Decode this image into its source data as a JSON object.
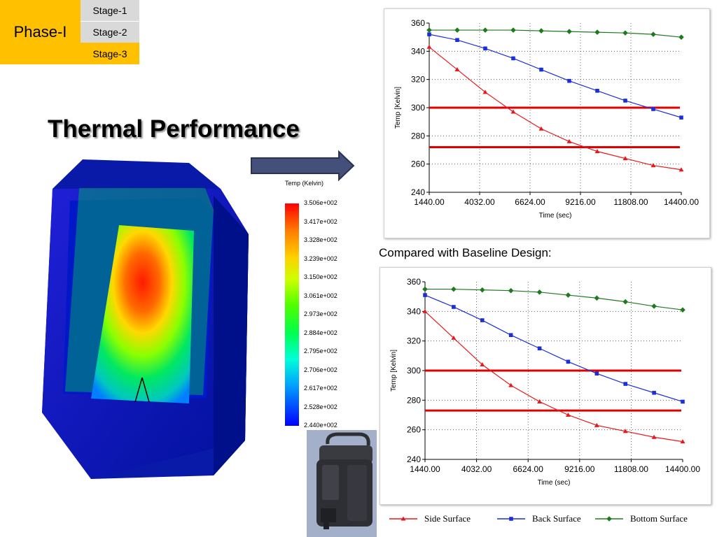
{
  "phase": {
    "label": "Phase-I"
  },
  "stages": [
    "Stage-1",
    "Stage-2",
    "Stage-3"
  ],
  "title": "Thermal Performance",
  "contour": {
    "legend_title": "Temp (Kelvin)",
    "ticks": [
      "3.506e+002",
      "3.417e+002",
      "3.328e+002",
      "3.239e+002",
      "3.150e+002",
      "3.061e+002",
      "2.973e+002",
      "2.884e+002",
      "2.795e+002",
      "2.706e+002",
      "2.617e+002",
      "2.528e+002",
      "2.440e+002"
    ]
  },
  "compare_text": "Compared with Baseline Design:",
  "colors": {
    "side": "#e8191c",
    "back": "#1b2fd6",
    "bottom": "#1f7a1f",
    "threshold": "#e00000",
    "accent": "#ffc000"
  },
  "legend": [
    "Side Surface",
    "Back Surface",
    "Bottom Surface"
  ],
  "chart_data": [
    {
      "type": "line",
      "xlabel": "Time (sec)",
      "ylabel": "Temp [Kelvin]",
      "xlim": [
        1440,
        14400
      ],
      "ylim": [
        240,
        360
      ],
      "xticks": [
        "1440.00",
        "4032.00",
        "6624.00",
        "9216.00",
        "11808.00",
        "14400.00"
      ],
      "yticks": [
        "240",
        "260",
        "280",
        "300",
        "320",
        "340",
        "360"
      ],
      "x": [
        1440,
        2880,
        4320,
        5760,
        7200,
        8640,
        10080,
        11520,
        12960,
        14400
      ],
      "series": [
        {
          "name": "Side Surface",
          "values": [
            343,
            327,
            311,
            297,
            285,
            276,
            269,
            264,
            259,
            256
          ]
        },
        {
          "name": "Back Surface",
          "values": [
            352,
            348,
            342,
            335,
            327,
            319,
            312,
            305,
            299,
            293
          ]
        },
        {
          "name": "Bottom Surface",
          "values": [
            355,
            355,
            355,
            355,
            354.5,
            354,
            353.5,
            353,
            352,
            350
          ]
        }
      ],
      "hlines": [
        300,
        272
      ]
    },
    {
      "type": "line",
      "xlabel": "Time (sec)",
      "ylabel": "Temp [Kelvin]",
      "xlim": [
        1440,
        14400
      ],
      "ylim": [
        240,
        360
      ],
      "xticks": [
        "1440.00",
        "4032.00",
        "6624.00",
        "9216.00",
        "11808.00",
        "14400.00"
      ],
      "yticks": [
        "240",
        "260",
        "280",
        "300",
        "320",
        "340",
        "360"
      ],
      "x": [
        1440,
        2880,
        4320,
        5760,
        7200,
        8640,
        10080,
        11520,
        12960,
        14400
      ],
      "series": [
        {
          "name": "Side Surface",
          "values": [
            340,
            322,
            304,
            290,
            279,
            270,
            263,
            259,
            255,
            252
          ]
        },
        {
          "name": "Back Surface",
          "values": [
            351,
            343,
            334,
            324,
            315,
            306,
            298,
            291,
            285,
            279
          ]
        },
        {
          "name": "Bottom Surface",
          "values": [
            355,
            355,
            354.5,
            354,
            353,
            351,
            349,
            346.5,
            343.5,
            341
          ]
        }
      ],
      "hlines": [
        300,
        273
      ]
    }
  ]
}
